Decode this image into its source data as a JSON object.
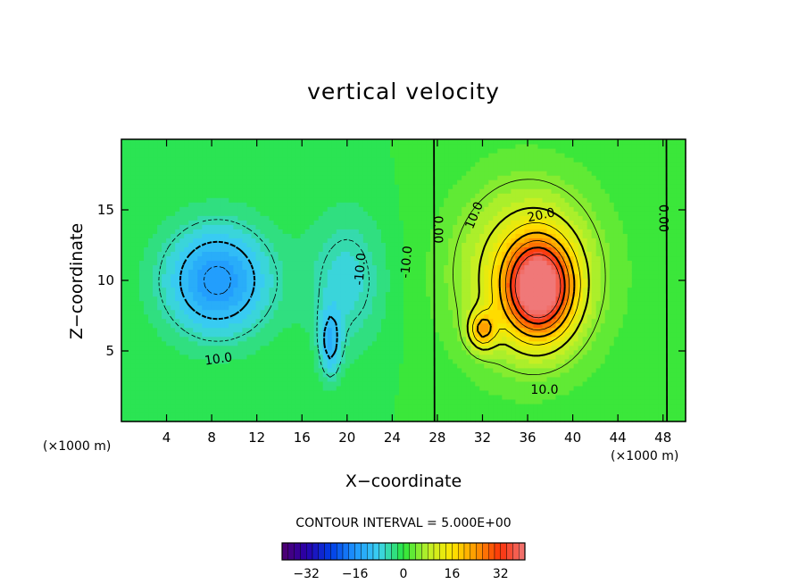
{
  "chart_data": {
    "type": "heatmap",
    "title": "vertical velocity",
    "xlabel": "X−coordinate",
    "ylabel": "Z−coordinate",
    "x_unit_label": "(×1000 m)",
    "x_unit_label_right": "(×1000 m)",
    "xlim": [
      0,
      50
    ],
    "ylim": [
      0,
      20
    ],
    "x_ticks": [
      4,
      8,
      12,
      16,
      20,
      24,
      28,
      32,
      36,
      40,
      44,
      48
    ],
    "y_ticks": [
      5,
      10,
      15
    ],
    "contour_interval_text": "CONTOUR INTERVAL = 5.000E+00",
    "contour_interval": 5.0,
    "colorbar": {
      "range": [
        -40,
        40
      ],
      "ticks": [
        -32,
        -16,
        0,
        16,
        32
      ]
    },
    "contour_labels": [
      {
        "text": "10.0",
        "x": 8.6,
        "z": 4.4,
        "angle": -8
      },
      {
        "text": "-10.0",
        "x": 21.2,
        "z": 10.8,
        "angle": -85
      },
      {
        "text": "-10.0",
        "x": 25.3,
        "z": 11.3,
        "angle": -85
      },
      {
        "text": "0.00",
        "x": 28.0,
        "z": 13.6,
        "angle": 90
      },
      {
        "text": "10.0",
        "x": 31.3,
        "z": 14.6,
        "angle": -68
      },
      {
        "text": "20.0",
        "x": 37.2,
        "z": 14.6,
        "angle": -12
      },
      {
        "text": "10.0",
        "x": 37.5,
        "z": 2.2,
        "angle": 0
      },
      {
        "text": "0.00",
        "x": 48.0,
        "z": 14.4,
        "angle": 90
      }
    ],
    "features": [
      {
        "kind": "updraft",
        "x": 37.0,
        "z": 9.5,
        "peak": 38,
        "sx": 2.8,
        "sz": 3.2
      },
      {
        "kind": "updraft",
        "x": 32.0,
        "z": 6.5,
        "peak": 16,
        "sx": 1.2,
        "sz": 1.3
      },
      {
        "kind": "updraft",
        "x": 36.0,
        "z": 10.5,
        "peak": 14,
        "sx": 6.5,
        "sz": 6.5
      },
      {
        "kind": "downdraft",
        "x": 8.5,
        "z": 10.0,
        "peak": -16,
        "sx": 4.8,
        "sz": 4.0
      },
      {
        "kind": "downdraft",
        "x": 20.0,
        "z": 10.0,
        "peak": -7,
        "sx": 3.5,
        "sz": 5.0
      },
      {
        "kind": "downdraft",
        "x": 18.5,
        "z": 5.5,
        "peak": -10,
        "sx": 1.0,
        "sz": 2.5
      }
    ]
  }
}
